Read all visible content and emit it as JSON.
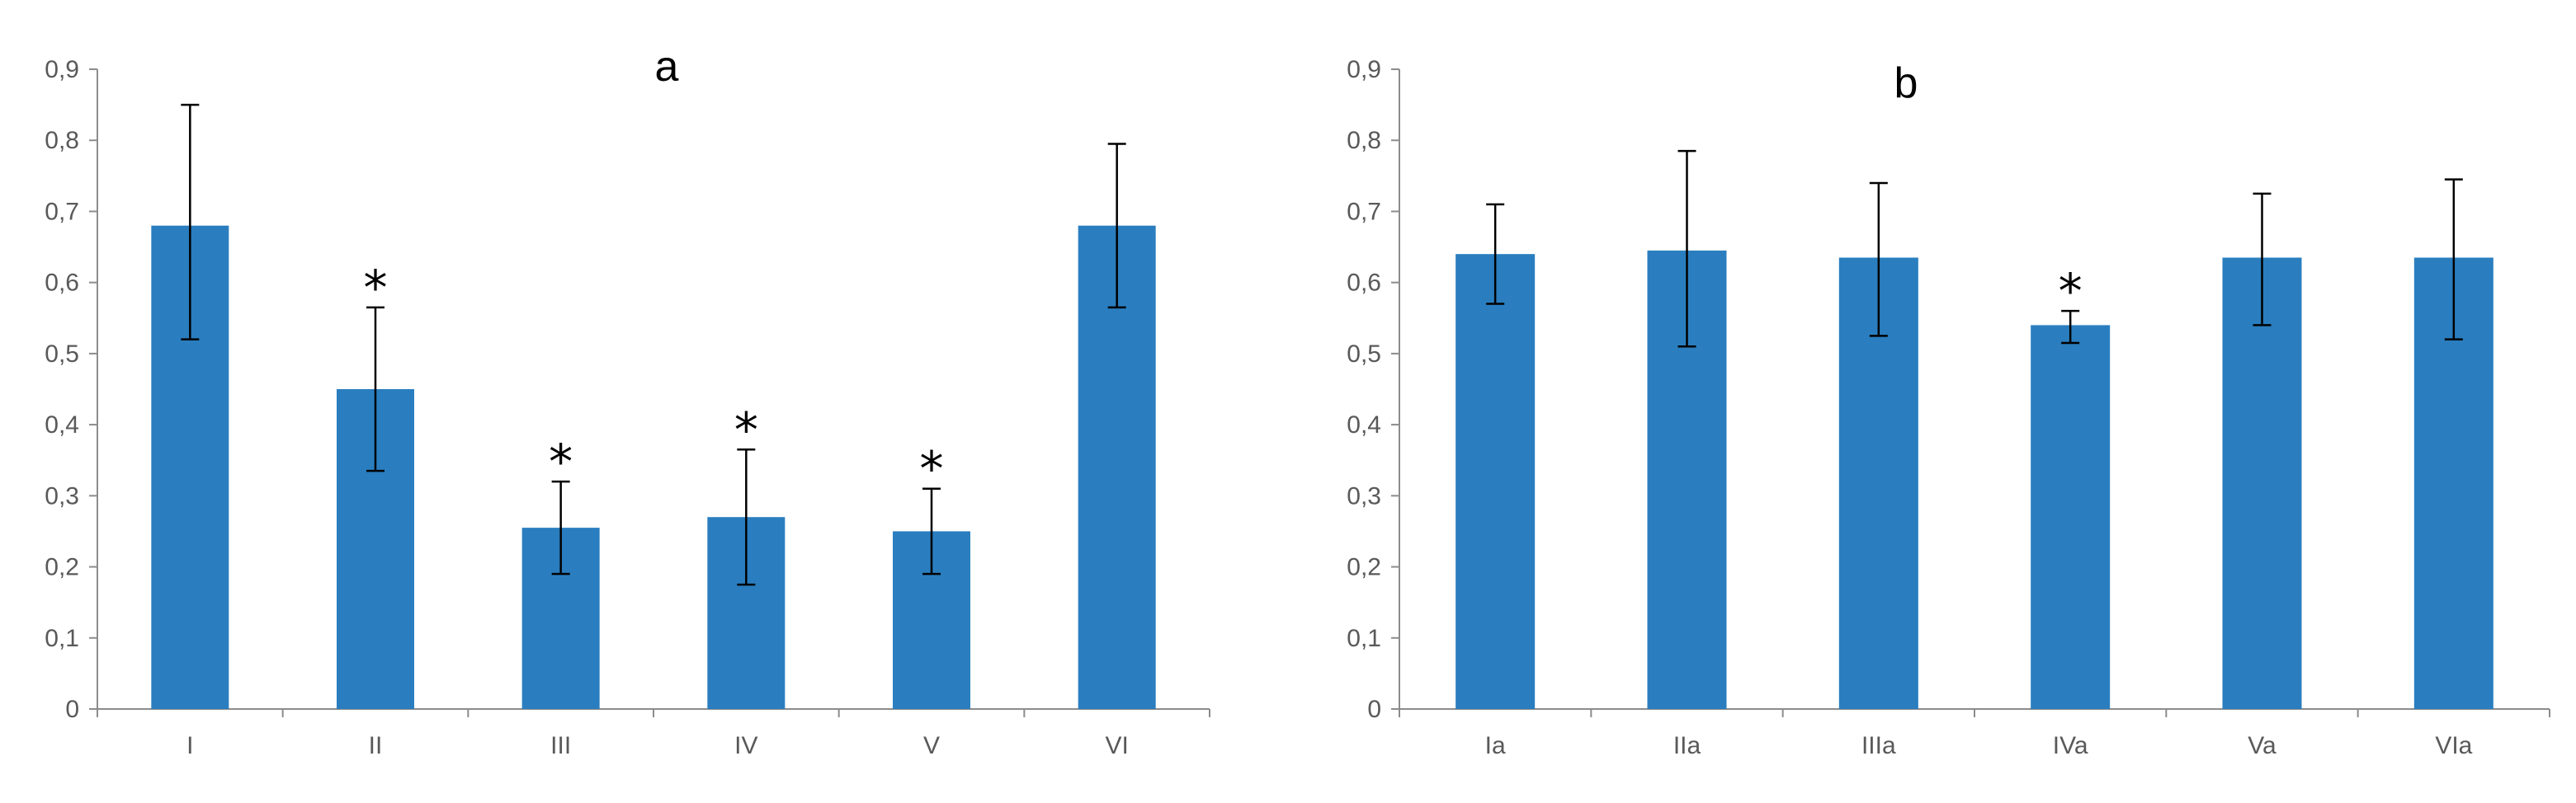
{
  "chart_data": [
    {
      "type": "bar",
      "title": "a",
      "categories": [
        "I",
        "II",
        "III",
        "IV",
        "V",
        "VI"
      ],
      "values": [
        0.68,
        0.45,
        0.255,
        0.27,
        0.25,
        0.68
      ],
      "error_low": [
        0.52,
        0.335,
        0.19,
        0.175,
        0.19,
        0.565
      ],
      "error_high": [
        0.85,
        0.565,
        0.32,
        0.365,
        0.31,
        0.795
      ],
      "annotations": [
        "",
        "*",
        "*",
        "*",
        "*",
        ""
      ],
      "ylim": [
        0,
        0.9
      ],
      "yticks": [
        "0",
        "0,1",
        "0,2",
        "0,3",
        "0,4",
        "0,5",
        "0,6",
        "0,7",
        "0,8",
        "0,9"
      ],
      "bar_color": "#2A7EBF",
      "grid": false
    },
    {
      "type": "bar",
      "title": "b",
      "categories": [
        "Ia",
        "IIa",
        "IIIa",
        "IVa",
        "Va",
        "VIa"
      ],
      "values": [
        0.64,
        0.645,
        0.635,
        0.54,
        0.635,
        0.635
      ],
      "error_low": [
        0.57,
        0.51,
        0.525,
        0.515,
        0.54,
        0.52
      ],
      "error_high": [
        0.71,
        0.785,
        0.74,
        0.56,
        0.725,
        0.745
      ],
      "annotations": [
        "",
        "",
        "",
        "*",
        "",
        ""
      ],
      "ylim": [
        0,
        0.9
      ],
      "yticks": [
        "0",
        "0,1",
        "0,2",
        "0,3",
        "0,4",
        "0,5",
        "0,6",
        "0,7",
        "0,8",
        "0,9"
      ],
      "bar_color": "#2A7EBF",
      "grid": false
    }
  ]
}
